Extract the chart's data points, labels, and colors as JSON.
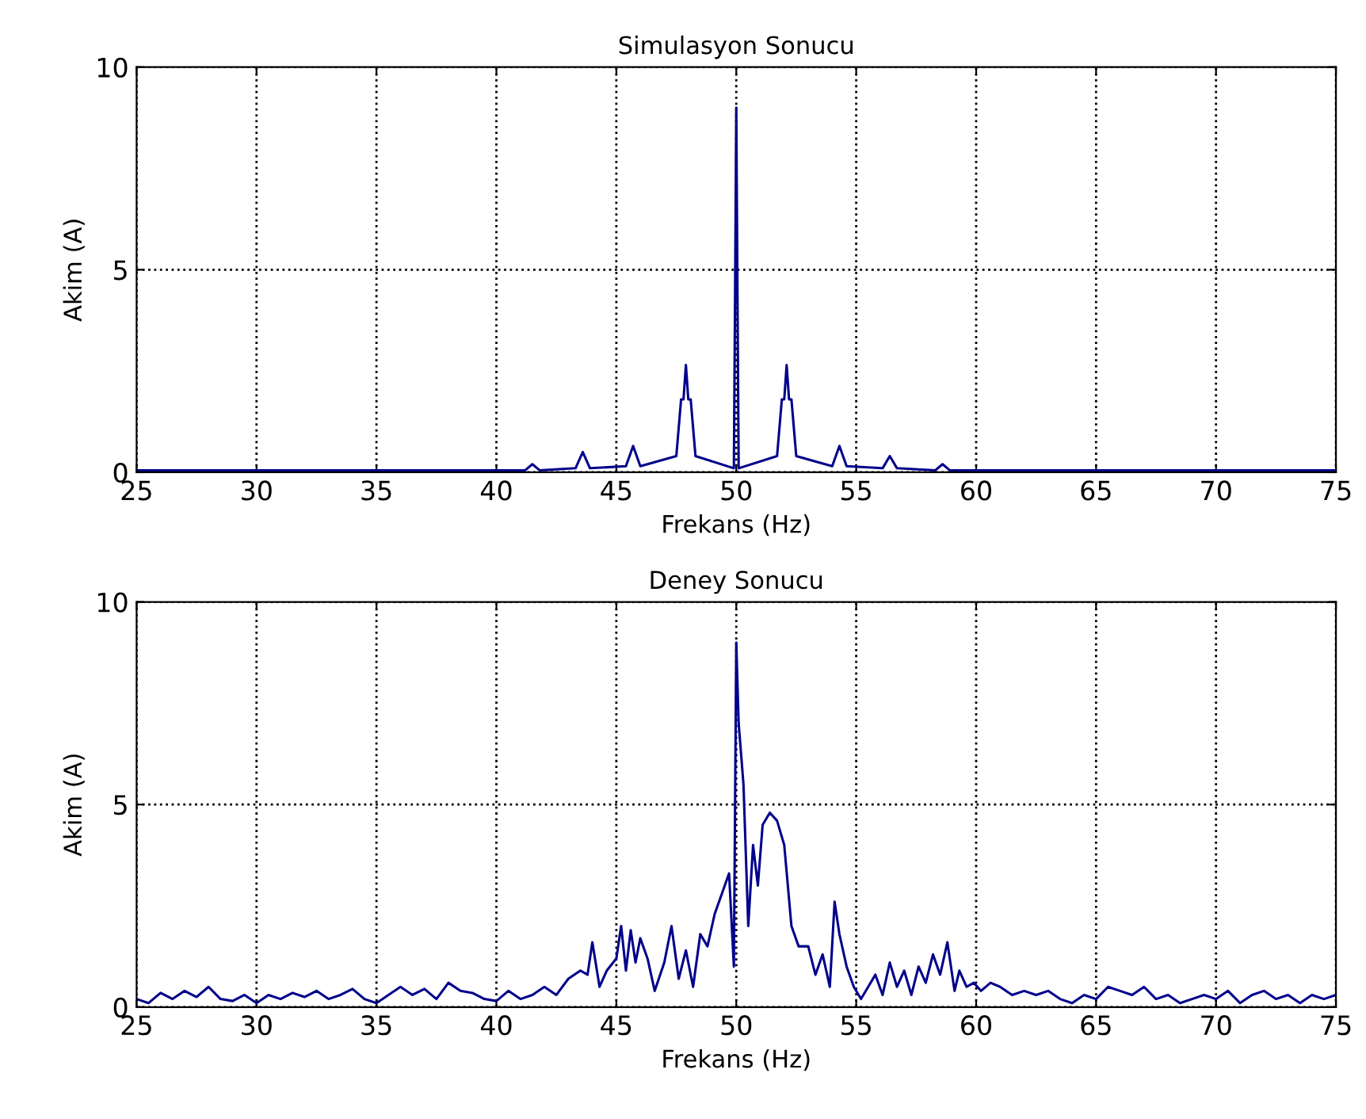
{
  "chart_data": [
    {
      "type": "line",
      "title": "Simulasyon Sonucu",
      "xlabel": "Frekans (Hz)",
      "ylabel": "Akim (A)",
      "xlim": [
        25,
        75
      ],
      "ylim": [
        0,
        10
      ],
      "xticks": [
        25,
        30,
        35,
        40,
        45,
        50,
        55,
        60,
        65,
        70,
        75
      ],
      "yticks": [
        0,
        5,
        10
      ],
      "grid": true,
      "legend": false,
      "line_style": "solid",
      "series": [
        {
          "color": "#00008b",
          "x": [
            25,
            41.2,
            41.5,
            41.8,
            43.3,
            43.6,
            43.9,
            45.4,
            45.7,
            46,
            47.5,
            47.7,
            47.8,
            47.9,
            48,
            48.1,
            48.3,
            49.9,
            49.95,
            50,
            50.05,
            50.1,
            51.7,
            51.9,
            52,
            52.1,
            52.2,
            52.3,
            52.5,
            54,
            54.3,
            54.6,
            56.1,
            56.4,
            56.7,
            58.3,
            58.6,
            58.9,
            75
          ],
          "values": [
            0.05,
            0.05,
            0.2,
            0.05,
            0.1,
            0.5,
            0.1,
            0.15,
            0.65,
            0.15,
            0.4,
            1.8,
            1.8,
            2.65,
            1.8,
            1.8,
            0.4,
            0.1,
            4.4,
            9.0,
            4.4,
            0.1,
            0.4,
            1.8,
            1.8,
            2.65,
            1.8,
            1.8,
            0.4,
            0.15,
            0.65,
            0.15,
            0.1,
            0.4,
            0.1,
            0.05,
            0.2,
            0.05,
            0.05
          ]
        }
      ]
    },
    {
      "type": "line",
      "title": "Deney Sonucu",
      "xlabel": "Frekans (Hz)",
      "ylabel": "Akim (A)",
      "xlim": [
        25,
        75
      ],
      "ylim": [
        0,
        10
      ],
      "xticks": [
        25,
        30,
        35,
        40,
        45,
        50,
        55,
        60,
        65,
        70,
        75
      ],
      "yticks": [
        0,
        5,
        10
      ],
      "grid": true,
      "legend": false,
      "line_style": "solid",
      "series": [
        {
          "color": "#00008b",
          "x": [
            25,
            25.5,
            26,
            26.5,
            27,
            27.5,
            28,
            28.5,
            29,
            29.5,
            30,
            30.5,
            31,
            31.5,
            32,
            32.5,
            33,
            33.5,
            34,
            34.5,
            35,
            35.5,
            36,
            36.5,
            37,
            37.5,
            38,
            38.5,
            39,
            39.5,
            40,
            40.5,
            41,
            41.5,
            42,
            42.5,
            43,
            43.5,
            43.8,
            44,
            44.3,
            44.6,
            45,
            45.2,
            45.4,
            45.6,
            45.8,
            46,
            46.3,
            46.6,
            47,
            47.3,
            47.6,
            47.9,
            48.2,
            48.5,
            48.8,
            49.1,
            49.4,
            49.7,
            49.9,
            50,
            50.1,
            50.3,
            50.5,
            50.7,
            50.9,
            51.1,
            51.4,
            51.7,
            52,
            52.3,
            52.6,
            53,
            53.3,
            53.6,
            53.9,
            54.1,
            54.3,
            54.6,
            54.9,
            55.2,
            55.5,
            55.8,
            56.1,
            56.4,
            56.7,
            57,
            57.3,
            57.6,
            57.9,
            58.2,
            58.5,
            58.8,
            59.1,
            59.3,
            59.6,
            59.9,
            60.2,
            60.6,
            61,
            61.5,
            62,
            62.5,
            63,
            63.5,
            64,
            64.5,
            65,
            65.5,
            66,
            66.5,
            67,
            67.5,
            68,
            68.5,
            69,
            69.5,
            70,
            70.5,
            71,
            71.5,
            72,
            72.5,
            73,
            73.5,
            74,
            74.5,
            75
          ],
          "values": [
            0.2,
            0.1,
            0.35,
            0.2,
            0.4,
            0.25,
            0.5,
            0.2,
            0.15,
            0.3,
            0.1,
            0.3,
            0.2,
            0.35,
            0.25,
            0.4,
            0.2,
            0.3,
            0.45,
            0.2,
            0.1,
            0.3,
            0.5,
            0.3,
            0.45,
            0.2,
            0.6,
            0.4,
            0.35,
            0.2,
            0.15,
            0.4,
            0.2,
            0.3,
            0.5,
            0.3,
            0.7,
            0.9,
            0.8,
            1.6,
            0.5,
            0.9,
            1.2,
            2.0,
            0.9,
            1.9,
            1.1,
            1.7,
            1.2,
            0.4,
            1.1,
            2.0,
            0.7,
            1.4,
            0.5,
            1.8,
            1.5,
            2.3,
            2.8,
            3.3,
            1.0,
            9.0,
            7.0,
            5.5,
            2.0,
            4.0,
            3.0,
            4.5,
            4.8,
            4.6,
            4.0,
            2.0,
            1.5,
            1.5,
            0.8,
            1.3,
            0.5,
            2.6,
            1.8,
            1.0,
            0.5,
            0.2,
            0.5,
            0.8,
            0.3,
            1.1,
            0.5,
            0.9,
            0.3,
            1.0,
            0.6,
            1.3,
            0.8,
            1.6,
            0.4,
            0.9,
            0.5,
            0.6,
            0.4,
            0.6,
            0.5,
            0.3,
            0.4,
            0.3,
            0.4,
            0.2,
            0.1,
            0.3,
            0.2,
            0.5,
            0.4,
            0.3,
            0.5,
            0.2,
            0.3,
            0.1,
            0.2,
            0.3,
            0.2,
            0.4,
            0.1,
            0.3,
            0.4,
            0.2,
            0.3,
            0.1,
            0.3,
            0.2,
            0.3
          ]
        }
      ]
    }
  ]
}
